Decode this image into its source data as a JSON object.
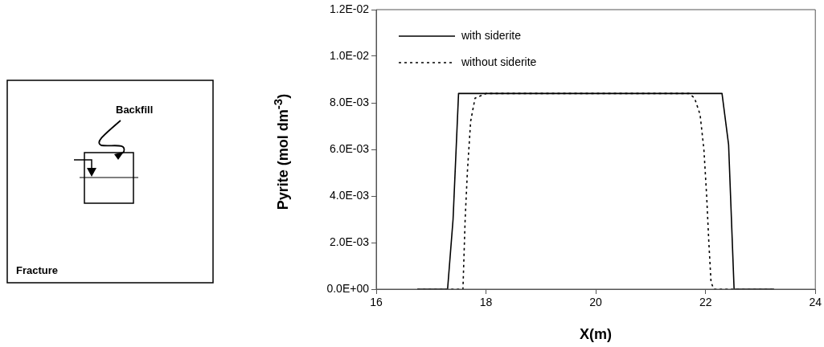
{
  "chart_data": {
    "type": "line",
    "xlabel": "X(m)",
    "ylabel": "Pyrite (mol dm$^{-3}$)",
    "annotations": [
      "Backfill",
      "Fracture"
    ],
    "xlim": [
      16,
      24
    ],
    "xticks": [
      16,
      18,
      20,
      22,
      24
    ],
    "ylim": [
      0,
      0.012
    ],
    "yticks": [
      {
        "value": 0,
        "label": "0.0E+00"
      },
      {
        "value": 0.002,
        "label": "2.0E-03"
      },
      {
        "value": 0.004,
        "label": "4.0E-03"
      },
      {
        "value": 0.006,
        "label": "6.0E-03"
      },
      {
        "value": 0.008,
        "label": "8.0E-03"
      },
      {
        "value": 0.01,
        "label": "1.0E-02"
      },
      {
        "value": 0.012,
        "label": "1.2E-02"
      }
    ],
    "grid": false,
    "legend": "top left",
    "marker": "none",
    "series": [
      {
        "name": "with siderite",
        "color": "#000000",
        "line_style": "solid",
        "x": [
          16.75,
          17.3,
          17.4,
          17.5,
          22.3,
          22.42,
          22.52,
          23.25
        ],
        "values": [
          0,
          0,
          0.003,
          0.0084,
          0.0084,
          0.0062,
          0,
          0
        ]
      },
      {
        "name": "without siderite",
        "color": "#000000",
        "line_style": "dotted",
        "x": [
          16.75,
          17.58,
          17.62,
          17.66,
          17.72,
          17.8,
          18.0,
          21.7,
          21.8,
          21.9,
          21.97,
          22.02,
          22.06,
          22.1,
          22.15,
          23.23
        ],
        "values": [
          0,
          0,
          0.003,
          0.005,
          0.0072,
          0.0082,
          0.0084,
          0.0084,
          0.0082,
          0.0075,
          0.006,
          0.004,
          0.002,
          0.0003,
          0,
          0
        ]
      }
    ]
  }
}
